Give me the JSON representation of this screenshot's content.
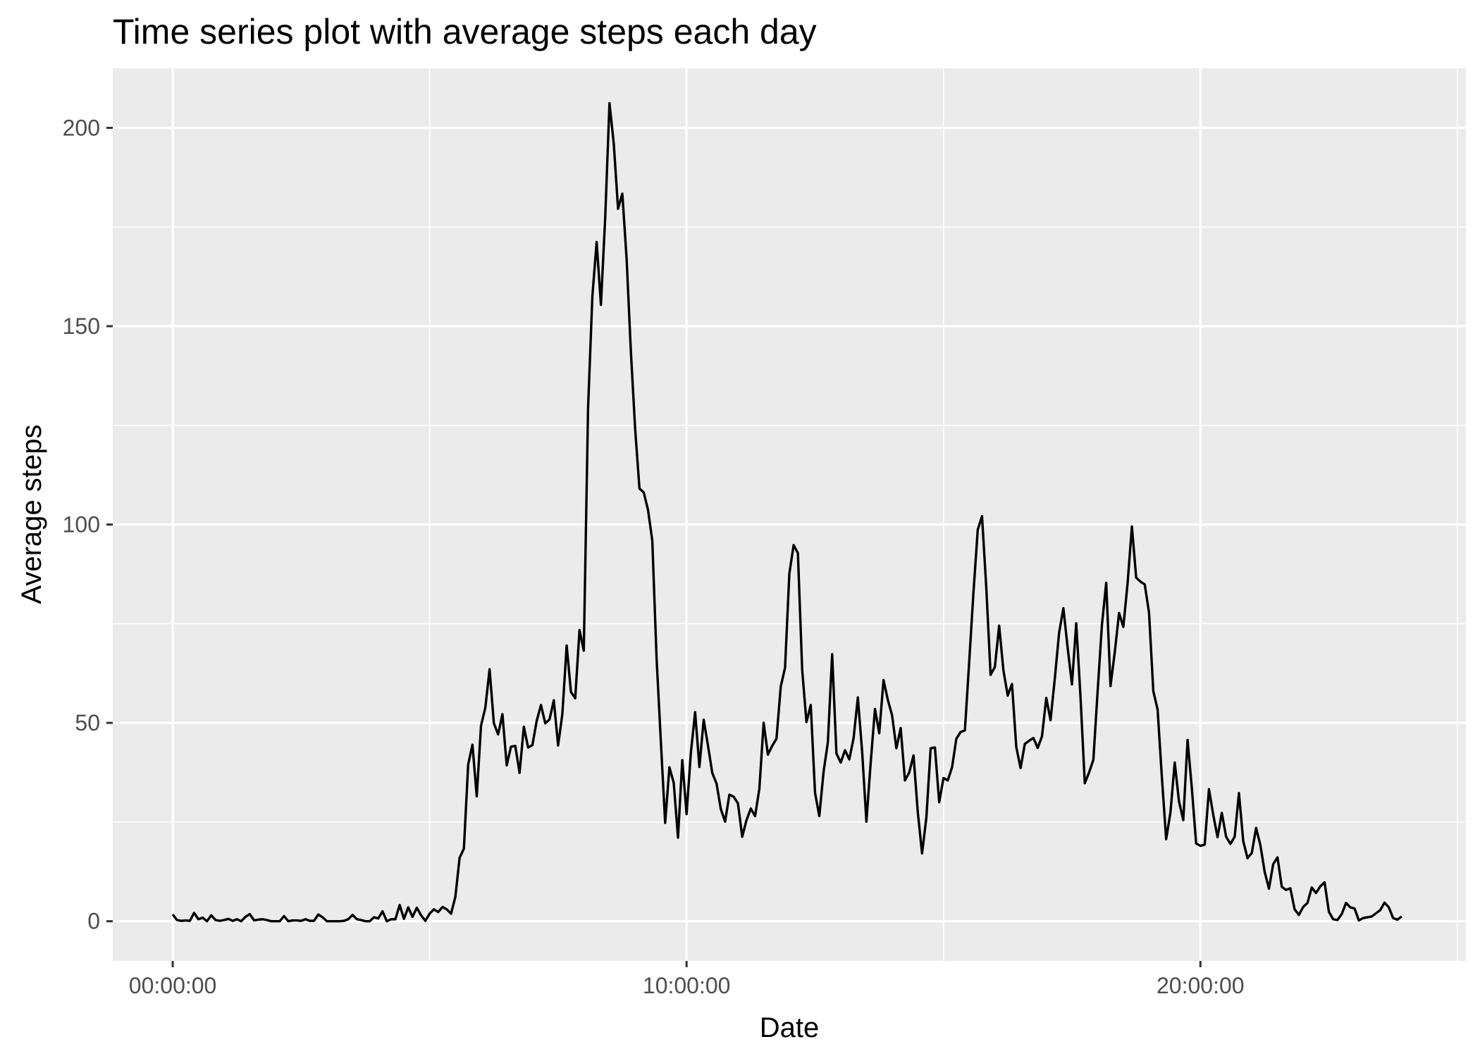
{
  "chart_data": {
    "type": "line",
    "title": "Time series plot with average steps each day",
    "xlabel": "Date",
    "ylabel": "Average steps",
    "xlim": [
      "-01:10:00",
      "25:10:00"
    ],
    "ylim": [
      -10,
      215
    ],
    "x_ticks": [
      "00:00:00",
      "10:00:00",
      "20:00:00"
    ],
    "y_ticks": [
      0,
      50,
      100,
      150,
      200
    ],
    "grid": true,
    "colors": {
      "panel": "#ebebeb",
      "grid": "#ffffff",
      "line": "#000000",
      "tick_label": "#4d4d4d",
      "tick_mark": "#333333"
    },
    "series": [
      {
        "x_start": "00:00",
        "x_step": "00:05",
        "values": [
          1.7,
          0.3,
          0.1,
          0.2,
          0.1,
          2.1,
          0.5,
          0.9,
          0.0,
          1.5,
          0.3,
          0.1,
          0.3,
          0.6,
          0.1,
          0.5,
          0.0,
          1.1,
          1.8,
          0.2,
          0.4,
          0.5,
          0.3,
          0.0,
          0.0,
          0.0,
          1.3,
          0.0,
          0.2,
          0.2,
          0.1,
          0.5,
          0.1,
          0.1,
          1.7,
          1.0,
          0.0,
          0.0,
          0.0,
          0.0,
          0.1,
          0.5,
          1.6,
          0.5,
          0.3,
          0.0,
          0.0,
          1.0,
          0.7,
          2.5,
          0.0,
          0.5,
          0.5,
          4.1,
          0.6,
          3.5,
          1.1,
          3.4,
          1.5,
          0.1,
          1.9,
          3.0,
          2.3,
          3.6,
          3.0,
          1.9,
          6.1,
          16.0,
          18.3,
          39.5,
          44.5,
          31.5,
          49.3,
          53.8,
          63.5,
          49.9,
          47.1,
          52.2,
          39.3,
          44.0,
          44.2,
          37.4,
          49.0,
          43.8,
          44.4,
          50.5,
          54.5,
          49.9,
          50.9,
          55.7,
          44.3,
          52.3,
          69.5,
          57.8,
          56.2,
          73.4,
          68.2,
          129.4,
          157.5,
          171.2,
          155.4,
          177.3,
          206.2,
          196.0,
          179.6,
          183.4,
          167.0,
          143.5,
          124.0,
          109.1,
          108.1,
          103.7,
          95.9,
          66.2,
          45.2,
          24.8,
          38.8,
          34.9,
          21.1,
          40.6,
          27.0,
          42.4,
          52.7,
          38.9,
          50.8,
          44.3,
          37.4,
          34.7,
          28.3,
          25.1,
          31.9,
          31.4,
          29.7,
          21.3,
          25.5,
          28.4,
          26.5,
          33.4,
          50.0,
          42.0,
          44.2,
          46.0,
          59.2,
          63.9,
          87.6,
          94.8,
          92.8,
          63.4,
          50.2,
          54.5,
          32.4,
          26.5,
          37.7,
          45.1,
          67.3,
          42.3,
          40.0,
          43.1,
          40.8,
          46.1,
          56.4,
          42.8,
          25.1,
          40.0,
          53.5,
          47.4,
          60.8,
          55.8,
          51.9,
          43.6,
          48.7,
          35.5,
          37.5,
          41.8,
          27.5,
          17.1,
          26.1,
          43.6,
          43.8,
          30.0,
          36.1,
          35.5,
          38.8,
          46.0,
          47.7,
          48.1,
          65.3,
          82.9,
          98.7,
          102.1,
          84.0,
          62.1,
          64.1,
          74.5,
          63.2,
          56.9,
          59.8,
          43.9,
          38.6,
          44.7,
          45.5,
          46.2,
          43.7,
          46.6,
          56.3,
          50.7,
          61.2,
          72.7,
          78.9,
          68.9,
          59.7,
          75.1,
          56.5,
          34.8,
          37.5,
          40.7,
          58.0,
          74.7,
          85.3,
          59.3,
          67.8,
          77.7,
          74.2,
          85.3,
          99.5,
          86.6,
          85.6,
          84.9,
          77.8,
          58.0,
          53.4,
          36.3,
          20.7,
          27.4,
          40.0,
          30.2,
          25.5,
          45.7,
          33.5,
          19.6,
          19.0,
          19.3,
          33.3,
          26.8,
          21.2,
          27.3,
          21.3,
          19.5,
          21.3,
          32.3,
          20.2,
          15.9,
          17.2,
          23.5,
          19.2,
          12.5,
          8.2,
          14.4,
          16.1,
          8.7,
          7.9,
          8.3,
          3.0,
          1.6,
          3.6,
          4.6,
          8.5,
          7.1,
          8.8,
          9.8,
          2.4,
          0.5,
          0.3,
          1.8,
          4.6,
          3.5,
          3.2,
          0.2,
          0.8,
          1.0,
          1.2,
          2.0,
          2.8,
          4.7,
          3.5,
          0.8,
          0.4,
          1.2
        ]
      }
    ]
  }
}
